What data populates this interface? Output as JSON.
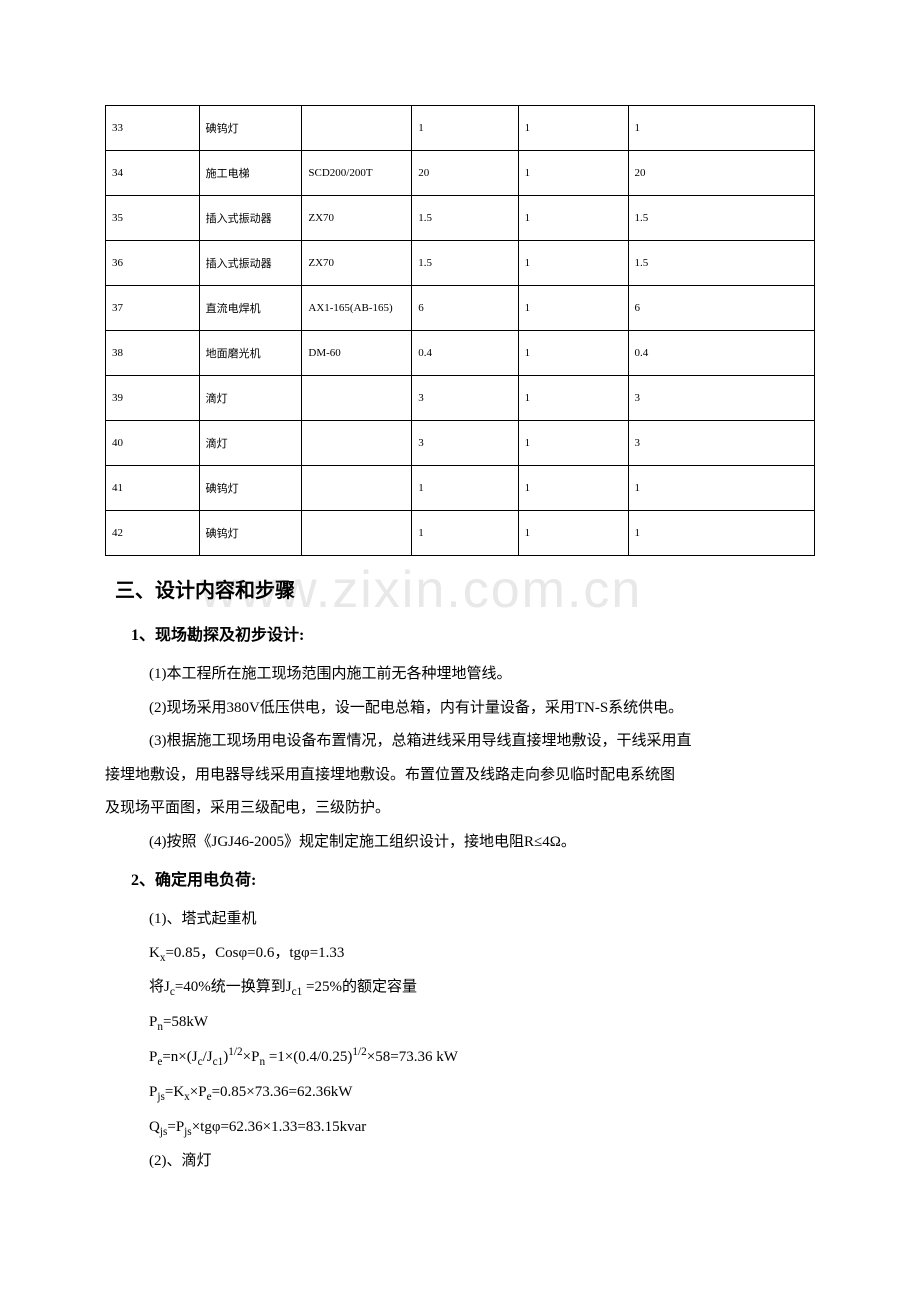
{
  "table": {
    "rows": [
      [
        "33",
        "碘钨灯",
        "",
        "1",
        "1",
        "1"
      ],
      [
        "34",
        "施工电梯",
        "SCD200/200T",
        "20",
        "1",
        "20"
      ],
      [
        "35",
        "插入式振动器",
        "ZX70",
        "1.5",
        "1",
        "1.5"
      ],
      [
        "36",
        "插入式振动器",
        "ZX70",
        "1.5",
        "1",
        "1.5"
      ],
      [
        "37",
        "直流电焊机",
        "AX1-165(AB-165)",
        "6",
        "1",
        "6"
      ],
      [
        "38",
        "地面磨光机",
        "DM-60",
        "0.4",
        "1",
        "0.4"
      ],
      [
        "39",
        "滴灯",
        "",
        "3",
        "1",
        "3"
      ],
      [
        "40",
        "滴灯",
        "",
        "3",
        "1",
        "3"
      ],
      [
        "41",
        "碘钨灯",
        "",
        "1",
        "1",
        "1"
      ],
      [
        "42",
        "碘钨灯",
        "",
        "1",
        "1",
        "1"
      ]
    ],
    "column_widths": [
      "13.2%",
      "14.5%",
      "15.5%",
      "15%",
      "15.5%",
      "26.3%"
    ],
    "border_color": "#000000",
    "cell_fontsize": 11
  },
  "section_heading": "三、设计内容和步骤",
  "sub1_heading": "1、现场勘探及初步设计:",
  "sub1_items": {
    "p1": "(1)本工程所在施工现场范围内施工前无各种埋地管线。",
    "p2": "(2)现场采用380V低压供电，设一配电总箱，内有计量设备，采用TN-S系统供电。",
    "p3": "(3)根据施工现场用电设备布置情况，总箱进线采用导线直接埋地敷设，干线采用直",
    "p3b": "接埋地敷设，用电器导线采用直接埋地敷设。布置位置及线路走向参见临时配电系统图",
    "p3c": "及现场平面图，采用三级配电，三级防护。",
    "p4": "(4)按照《JGJ46-2005》规定制定施工组织设计，接地电阻R≤4Ω。"
  },
  "sub2_heading": "2、确定用电负荷:",
  "sub2_items": {
    "p1": "(1)、塔式起重机",
    "p2_prefix": "K",
    "p2_sub1": "x",
    "p2_mid1": "=0.85，Cosφ=0.6，tgφ=1.33",
    "p3_prefix": "将J",
    "p3_sub1": "c",
    "p3_mid1": "=40%统一换算到J",
    "p3_sub2": "c1",
    "p3_mid2": " =25%的额定容量",
    "p4_prefix": "P",
    "p4_sub1": "n",
    "p4_mid1": "=58kW",
    "p5_prefix": "P",
    "p5_sub1": "e",
    "p5_mid1": "=n×(J",
    "p5_sub2": "c",
    "p5_mid2": "/J",
    "p5_sub3": "c1",
    "p5_mid3": ")",
    "p5_sup1": "1/2",
    "p5_mid4": "×P",
    "p5_sub4": "n",
    "p5_mid5": " =1×(0.4/0.25)",
    "p5_sup2": "1/2",
    "p5_mid6": "×58=73.36 kW",
    "p6_prefix": "P",
    "p6_sub1": "js",
    "p6_mid1": "=K",
    "p6_sub2": "x",
    "p6_mid2": "×P",
    "p6_sub3": "e",
    "p6_mid3": "=0.85×73.36=62.36kW",
    "p7_prefix": "Q",
    "p7_sub1": "js",
    "p7_mid1": "=P",
    "p7_sub2": "js",
    "p7_mid2": "×tgφ=62.36×1.33=83.15kvar",
    "p8": "(2)、滴灯"
  },
  "watermark_text": "www.zixin.com.cn",
  "colors": {
    "background": "#ffffff",
    "text": "#000000",
    "watermark": "#e8e8e8",
    "border": "#000000"
  },
  "typography": {
    "body_fontsize": 15,
    "heading_fontsize": 20,
    "subheading_fontsize": 16,
    "table_fontsize": 11,
    "font_family": "SimSun"
  }
}
